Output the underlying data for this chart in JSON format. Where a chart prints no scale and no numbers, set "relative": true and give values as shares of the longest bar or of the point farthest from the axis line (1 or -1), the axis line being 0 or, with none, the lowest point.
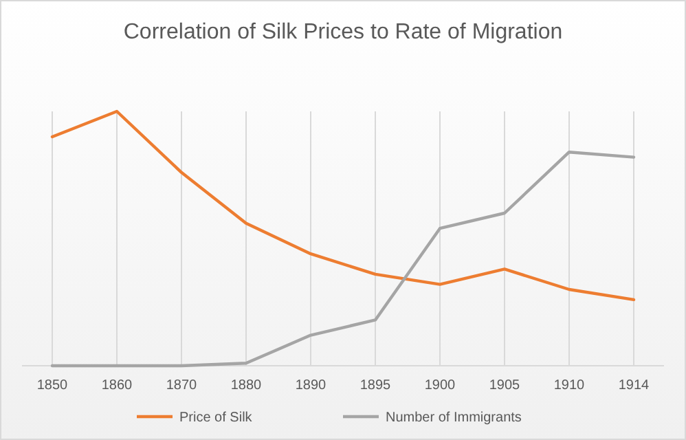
{
  "chart_data": {
    "type": "line",
    "title": "Correlation of Silk Prices to Rate of Migration",
    "relative": true,
    "categories": [
      "1850",
      "1860",
      "1870",
      "1880",
      "1890",
      "1895",
      "1900",
      "1905",
      "1910",
      "1914"
    ],
    "series": [
      {
        "name": "Price of Silk",
        "color": "#ed7d31",
        "values": [
          0.9,
          1,
          0.76,
          0.56,
          0.44,
          0.36,
          0.32,
          0.38,
          0.3,
          0.26
        ]
      },
      {
        "name": "Number of Immigrants",
        "color": "#a5a5a5",
        "values": [
          0,
          0,
          0,
          0.01,
          0.12,
          0.18,
          0.54,
          0.6,
          0.84,
          0.82
        ]
      }
    ],
    "grid": "x",
    "legend": "bottom",
    "marker": "none",
    "line_style": "solid"
  }
}
